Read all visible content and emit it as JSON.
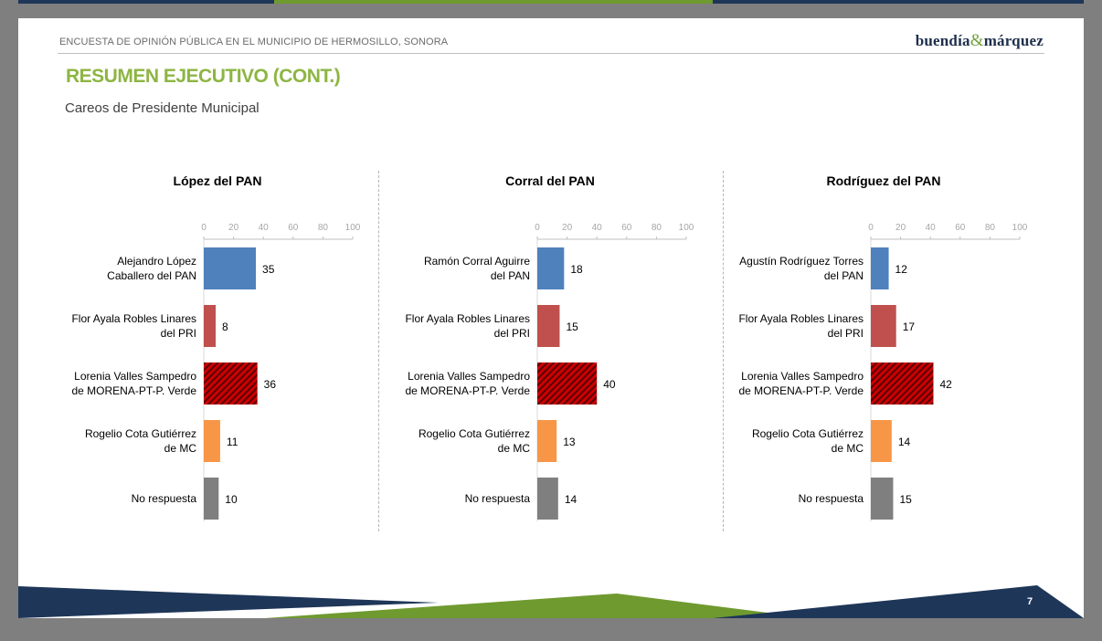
{
  "header": {
    "survey_title": "ENCUESTA DE OPINIÓN PÚBLICA EN EL MUNICIPIO DE HERMOSILLO, SONORA",
    "brand_left": "buendía",
    "brand_amp": "&",
    "brand_right": "márquez"
  },
  "section_title": "RESUMEN EJECUTIVO (CONT.)",
  "subtitle": "Careos de Presidente Municipal",
  "page_number": "7",
  "colors": {
    "pan": "#4f81bd",
    "pri": "#c0504d",
    "morena": "#cc0000",
    "morena_hatch": "#5a0000",
    "mc": "#f79646",
    "no_respuesta": "#7f7f7f",
    "title_green": "#8db543",
    "footer_navy": "#1e3658",
    "footer_green": "#6f9a2f"
  },
  "chart_data": [
    {
      "type": "bar",
      "orientation": "horizontal",
      "title": "López del PAN",
      "categories": [
        [
          "Alejandro López",
          "Caballero del PAN"
        ],
        [
          "Flor Ayala Robles Linares",
          "del PRI"
        ],
        [
          "Lorenia Valles Sampedro",
          "de MORENA-PT-P. Verde"
        ],
        [
          "Rogelio Cota Gutiérrez",
          "de MC"
        ],
        [
          "No respuesta"
        ]
      ],
      "values": [
        35,
        8,
        36,
        11,
        10
      ],
      "xlim": [
        0,
        100
      ],
      "xticks": [
        "0",
        "20",
        "40",
        "60",
        "80",
        "100"
      ],
      "bar_colors": [
        "pan",
        "pri",
        "morena",
        "mc",
        "no_respuesta"
      ],
      "grid": false
    },
    {
      "type": "bar",
      "orientation": "horizontal",
      "title": "Corral del PAN",
      "categories": [
        [
          "Ramón Corral Aguirre",
          "del PAN"
        ],
        [
          "Flor Ayala Robles Linares",
          "del PRI"
        ],
        [
          "Lorenia Valles Sampedro",
          "de MORENA-PT-P. Verde"
        ],
        [
          "Rogelio Cota Gutiérrez",
          "de MC"
        ],
        [
          "No respuesta"
        ]
      ],
      "values": [
        18,
        15,
        40,
        13,
        14
      ],
      "xlim": [
        0,
        100
      ],
      "xticks": [
        "0",
        "20",
        "40",
        "60",
        "80",
        "100"
      ],
      "bar_colors": [
        "pan",
        "pri",
        "morena",
        "mc",
        "no_respuesta"
      ],
      "grid": false
    },
    {
      "type": "bar",
      "orientation": "horizontal",
      "title": "Rodríguez del PAN",
      "categories": [
        [
          "Agustín Rodríguez Torres",
          "del PAN"
        ],
        [
          "Flor Ayala Robles Linares",
          "del PRI"
        ],
        [
          "Lorenia Valles Sampedro",
          "de MORENA-PT-P. Verde"
        ],
        [
          "Rogelio Cota Gutiérrez",
          "de MC"
        ],
        [
          "No respuesta"
        ]
      ],
      "values": [
        12,
        17,
        42,
        14,
        15
      ],
      "xlim": [
        0,
        100
      ],
      "xticks": [
        "0",
        "20",
        "40",
        "60",
        "80",
        "100"
      ],
      "bar_colors": [
        "pan",
        "pri",
        "morena",
        "mc",
        "no_respuesta"
      ],
      "grid": false
    }
  ]
}
